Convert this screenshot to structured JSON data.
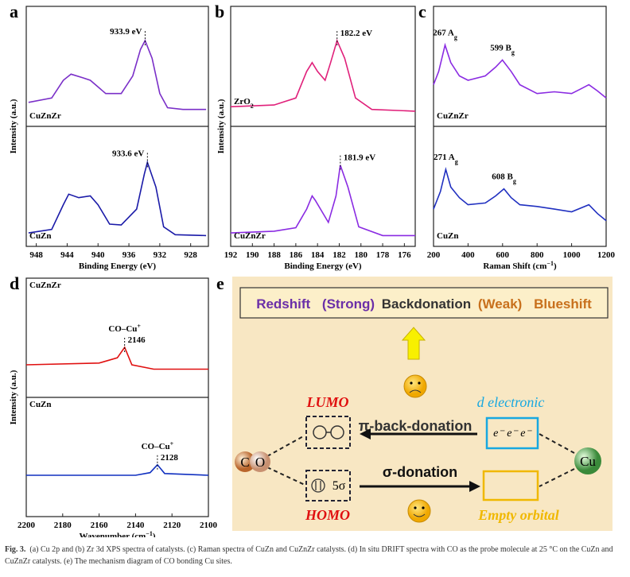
{
  "chart_data": [
    {
      "type": "line",
      "panel": "a",
      "xlabel": "Binding Energy (eV)",
      "ylabel": "Intensity (a.u.)",
      "xlim": [
        949.3,
        925.7
      ],
      "xticks": [
        948,
        944,
        940,
        936,
        932,
        928
      ],
      "subplots": [
        {
          "label": "CuZnZr",
          "color": "#7a2fc8",
          "ylim": [
            0,
            100
          ],
          "x": [
            949,
            946,
            944.5,
            943.5,
            942,
            941,
            939,
            937,
            935.5,
            934.5,
            933.9,
            933,
            932,
            931,
            929,
            926
          ],
          "values": [
            20,
            25,
            45,
            52,
            48,
            45,
            30,
            30,
            50,
            80,
            90,
            70,
            30,
            14,
            12,
            12
          ],
          "peak": {
            "value": 933.9,
            "label": "933.9 eV"
          }
        },
        {
          "label": "CuZn",
          "color": "#1a1aa8",
          "ylim": [
            0,
            100
          ],
          "x": [
            949,
            946,
            944.5,
            943.8,
            942.5,
            941,
            940,
            938.5,
            937,
            935,
            934,
            933.6,
            932.5,
            931.5,
            930,
            926
          ],
          "values": [
            8,
            12,
            40,
            52,
            48,
            50,
            40,
            18,
            17,
            35,
            75,
            88,
            60,
            15,
            6,
            5
          ],
          "peak": {
            "value": 933.6,
            "label": "933.6 eV"
          }
        }
      ]
    },
    {
      "type": "line",
      "panel": "b",
      "xlabel": "Binding Energy (eV)",
      "ylabel": "Intensity (a.u.)",
      "xlim": [
        192,
        175
      ],
      "xticks": [
        192,
        190,
        188,
        186,
        184,
        182,
        180,
        178,
        176
      ],
      "subplots": [
        {
          "label": "ZrO",
          "label_sub": "2",
          "color": "#e0207a",
          "ylim": [
            0,
            100
          ],
          "x": [
            192,
            188,
            186,
            185,
            184.5,
            184,
            183.3,
            182.8,
            182.2,
            181.5,
            180.5,
            179,
            175
          ],
          "values": [
            15,
            17,
            25,
            55,
            65,
            55,
            45,
            65,
            90,
            70,
            25,
            12,
            10
          ],
          "peak": {
            "value": 182.2,
            "label": "182.2 eV"
          }
        },
        {
          "label": "CuZnZr",
          "color": "#8a2be2",
          "ylim": [
            0,
            100
          ],
          "x": [
            192,
            188,
            186,
            185,
            184.5,
            184.2,
            183,
            182.3,
            181.9,
            181.2,
            180.2,
            178,
            175
          ],
          "values": [
            8,
            10,
            14,
            35,
            50,
            45,
            20,
            50,
            85,
            60,
            15,
            5,
            5
          ],
          "peak": {
            "value": 181.9,
            "label": "181.9 eV"
          }
        }
      ]
    },
    {
      "type": "line",
      "panel": "c",
      "xlabel": "Raman Shift (cm",
      "xlabel_sup": "−1",
      "xlabel_end": ")",
      "xlim": [
        200,
        1200
      ],
      "xticks": [
        200,
        400,
        600,
        800,
        1000,
        1200
      ],
      "subplots": [
        {
          "label": "CuZnZr",
          "color": "#8a2be2",
          "ylim": [
            0,
            100
          ],
          "x": [
            200,
            230,
            267,
            300,
            350,
            400,
            500,
            560,
            599,
            650,
            700,
            800,
            900,
            1000,
            1050,
            1100,
            1150,
            1200
          ],
          "values": [
            40,
            55,
            85,
            65,
            50,
            45,
            50,
            60,
            68,
            55,
            40,
            30,
            32,
            30,
            35,
            40,
            33,
            25
          ],
          "peaks": [
            {
              "value": 267,
              "label": "267 A",
              "sub": "g"
            },
            {
              "value": 599,
              "label": "599 B",
              "sub": "g"
            }
          ]
        },
        {
          "label": "CuZn",
          "color": "#2030c0",
          "ylim": [
            0,
            100
          ],
          "x": [
            200,
            240,
            271,
            300,
            350,
            400,
            500,
            560,
            608,
            650,
            700,
            800,
            900,
            1000,
            1100,
            1150,
            1200
          ],
          "values": [
            35,
            55,
            80,
            60,
            48,
            40,
            42,
            50,
            58,
            48,
            40,
            38,
            35,
            32,
            40,
            30,
            22
          ],
          "peaks": [
            {
              "value": 271,
              "label": "271 A",
              "sub": "g"
            },
            {
              "value": 608,
              "label": "608 B",
              "sub": "g"
            }
          ]
        }
      ]
    },
    {
      "type": "line",
      "panel": "d",
      "xlabel": "Wavenumber (cm",
      "xlabel_sup": "−1",
      "xlabel_end": ")",
      "ylabel": "Intensity (a.u.)",
      "xlim": [
        2200,
        2100
      ],
      "xticks": [
        2200,
        2180,
        2160,
        2140,
        2120,
        2100
      ],
      "subplots": [
        {
          "label": "CuZnZr",
          "color": "#e01010",
          "ylim": [
            0,
            100
          ],
          "x": [
            2200,
            2160,
            2150,
            2146,
            2142,
            2130,
            2100
          ],
          "values": [
            30,
            32,
            38,
            50,
            30,
            25,
            25
          ],
          "peak": {
            "value": 2146,
            "label": "2146"
          },
          "note": "CO–Cu",
          "note_sup": "+"
        },
        {
          "label": "CuZn",
          "color": "#1030c0",
          "ylim": [
            0,
            100
          ],
          "x": [
            2200,
            2140,
            2132,
            2128,
            2124,
            2100
          ],
          "values": [
            40,
            40,
            43,
            52,
            42,
            40
          ],
          "peak": {
            "value": 2128,
            "label": "2128"
          },
          "note": "CO–Cu",
          "note_sup": "+"
        }
      ]
    }
  ],
  "diagram": {
    "panel": "e",
    "title_parts": [
      "Redshift",
      "(Strong)",
      "Backdonation",
      "(Weak)",
      "Blueshift"
    ],
    "lumo": "LUMO",
    "homo": "HOMO",
    "pi": "π-back-donation",
    "sigma": "σ-donation",
    "d_electronic": "d electronic",
    "electrons": "e⁻ e⁻ e⁻",
    "empty": "Empty orbital",
    "c": "C",
    "o": "O",
    "cu": "Cu",
    "orbital": "5σ"
  },
  "caption": {
    "label": "Fig. 3.",
    "text": "(a) Cu 2p and (b) Zr 3d XPS spectra of catalysts. (c) Raman spectra of CuZn and CuZnZr catalysts. (d) In situ DRIFT spectra with CO as the probe molecule at 25 °C on the CuZn and CuZnZr catalysts. (e) The mechanism diagram of CO bonding Cu sites."
  }
}
